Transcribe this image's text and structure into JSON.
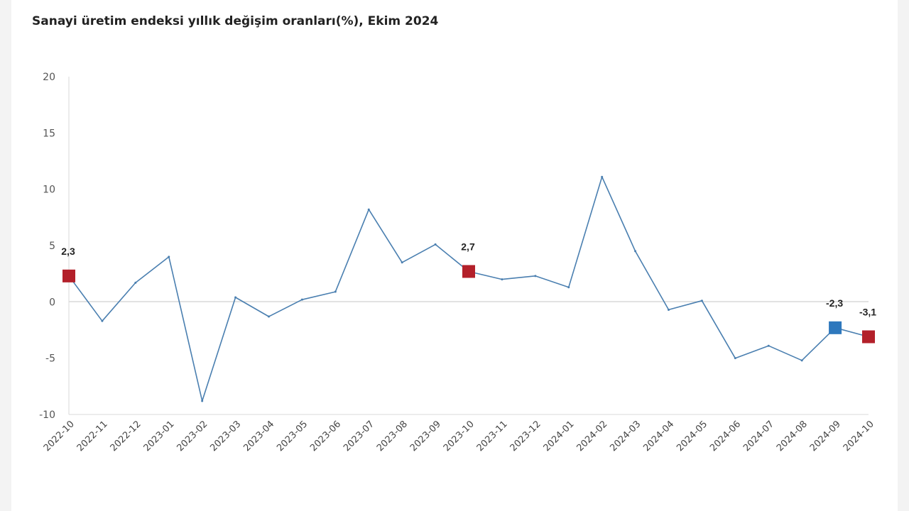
{
  "chart_data": {
    "type": "line",
    "title": "Sanayi üretim endeksi yıllık değişim oranları(%), Ekim 2024",
    "xlabel": "",
    "ylabel": "",
    "ylim": [
      -10,
      20
    ],
    "yticks": [
      20,
      15,
      10,
      5,
      0,
      -5,
      -10
    ],
    "grid": "horizontal zero line only",
    "legend": "none",
    "categories": [
      "2022-10",
      "2022-11",
      "2022-12",
      "2023-01",
      "2023-02",
      "2023-03",
      "2023-04",
      "2023-05",
      "2023-06",
      "2023-07",
      "2023-08",
      "2023-09",
      "2023-10",
      "2023-11",
      "2023-12",
      "2024-01",
      "2024-02",
      "2024-03",
      "2024-04",
      "2024-05",
      "2024-06",
      "2024-07",
      "2024-08",
      "2024-09",
      "2024-10"
    ],
    "series": [
      {
        "values": [
          2.3,
          -1.7,
          1.7,
          4.0,
          -8.8,
          0.4,
          -1.3,
          0.2,
          0.9,
          8.2,
          3.5,
          5.1,
          2.7,
          2.0,
          2.3,
          1.3,
          11.1,
          4.5,
          -0.7,
          0.1,
          -5.0,
          -3.9,
          -5.2,
          -2.3,
          -3.1
        ],
        "color": "#4a7fb0"
      }
    ],
    "markers": [
      {
        "index": 0,
        "label": "2,3",
        "color": "#b3202a"
      },
      {
        "index": 12,
        "label": "2,7",
        "color": "#b3202a"
      },
      {
        "index": 23,
        "label": "-2,3",
        "color": "#2e78bd"
      },
      {
        "index": 24,
        "label": "-3,1",
        "color": "#b3202a"
      }
    ]
  }
}
